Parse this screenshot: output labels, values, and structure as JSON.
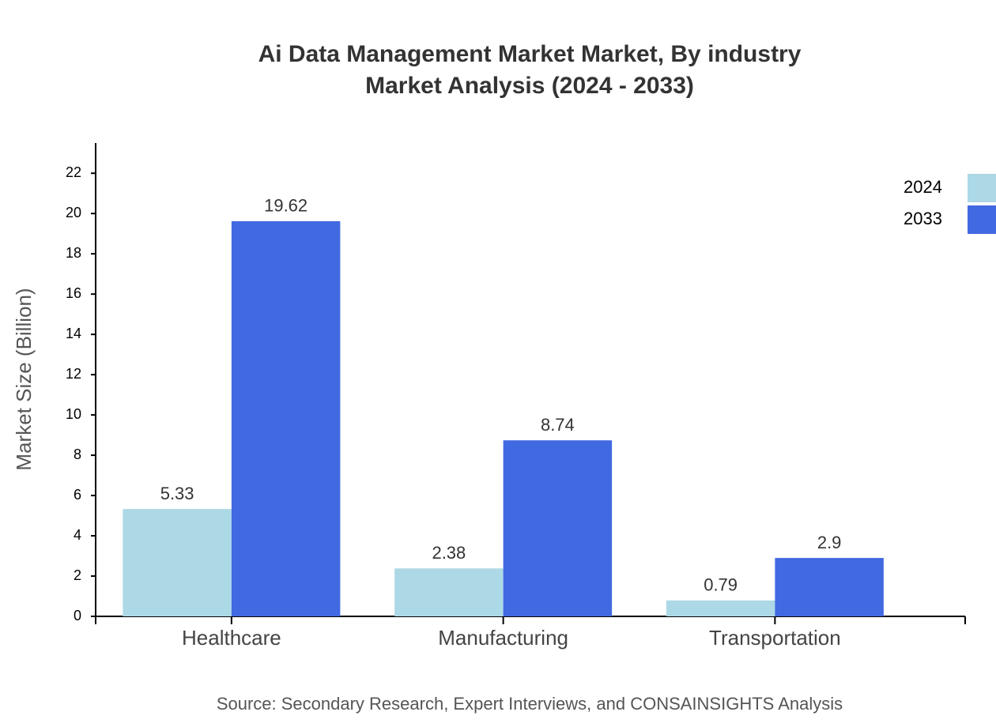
{
  "chart_data": {
    "type": "grouped-bar",
    "title": "Ai Data Management Market Market, By industry",
    "subtitle": "Market Analysis (2024 - 2033)",
    "y_label": "Market Size (Billion)",
    "source": "Source: Secondary Research, Expert Interviews, and CONSAINSIGHTS Analysis",
    "categories": [
      "Healthcare",
      "Manufacturing",
      "Transportation"
    ],
    "series": [
      {
        "name": "2024",
        "color": "#add8e6",
        "values": [
          5.33,
          2.38,
          0.79
        ]
      },
      {
        "name": "2033",
        "color": "#4169e1",
        "values": [
          19.62,
          8.74,
          2.9
        ]
      }
    ],
    "ylim": [
      0,
      23.5
    ],
    "yticks": [
      0,
      2,
      4,
      6,
      8,
      10,
      12,
      14,
      16,
      18,
      20,
      22
    ],
    "legend": "top-right"
  }
}
